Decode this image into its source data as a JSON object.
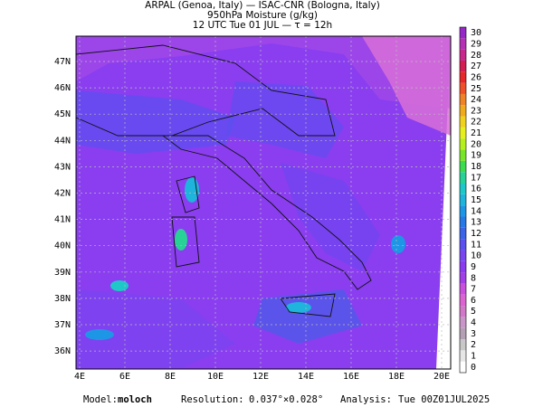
{
  "title": [
    "ARPAL (Genoa, Italy)  —  ISAC-CNR (Bologna, Italy)",
    "950hPa Moisture (g/kg)",
    "12 UTC Tue 01 JUL  —  τ = 12h"
  ],
  "lat_labels": [
    "47N",
    "46N",
    "45N",
    "44N",
    "43N",
    "42N",
    "41N",
    "40N",
    "39N",
    "38N",
    "37N",
    "36N"
  ],
  "lon_labels": [
    "4E",
    "6E",
    "8E",
    "10E",
    "12E",
    "14E",
    "16E",
    "18E",
    "20E"
  ],
  "colorbar": {
    "labels": [
      0,
      1,
      2,
      3,
      4,
      5,
      6,
      7,
      8,
      9,
      10,
      11,
      12,
      13,
      14,
      15,
      16,
      17,
      18,
      19,
      20,
      21,
      22,
      23,
      24,
      25,
      26,
      27,
      28,
      29,
      30
    ],
    "colors": [
      "#ffffff",
      "#e6e6e6",
      "#c8c8c8",
      "#b4a0b4",
      "#c896c8",
      "#d278c8",
      "#dc64d2",
      "#c850dc",
      "#a040e6",
      "#8c3cf0",
      "#7846f0",
      "#5a50f0",
      "#3c64e6",
      "#2878e6",
      "#1e96e6",
      "#1eb4dc",
      "#1ec8c8",
      "#28d296",
      "#3cdc50",
      "#78e628",
      "#b4f01e",
      "#e6f01e",
      "#f0d21e",
      "#f0aa1e",
      "#f08228",
      "#f05028",
      "#e62828",
      "#d21e50",
      "#c8288c",
      "#b432b4",
      "#9628c8"
    ]
  },
  "footer": {
    "model_label": "Model:",
    "model": "moloch",
    "resolution_label": "Resolution:",
    "resolution": "0.037°×0.028°",
    "analysis_label": "Analysis:",
    "analysis": "Tue 00Z01JUL2025"
  }
}
